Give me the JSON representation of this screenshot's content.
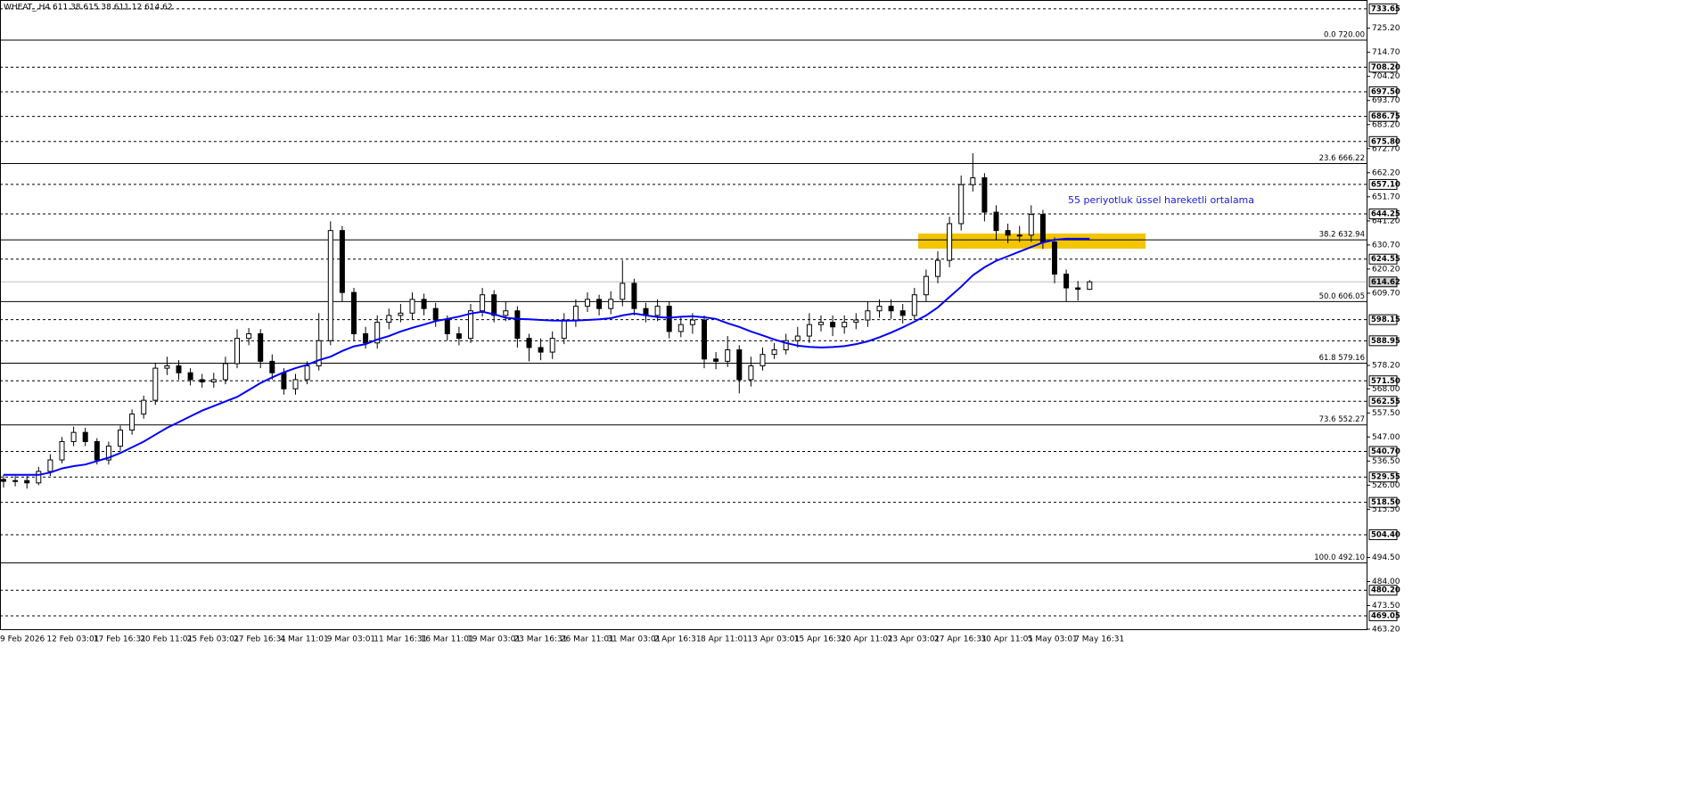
{
  "chart_data": {
    "type": "candlestick",
    "title": "WHEAT_,H4  611.38 615.38 611.12 614.62",
    "annotation": "55 periyotluk üssel hareketli ortalama",
    "categories": [
      "9 Feb 2026",
      null,
      null,
      null,
      "12 Feb 03:01",
      null,
      null,
      null,
      "17 Feb 16:31",
      null,
      null,
      null,
      "20 Feb 11:01",
      null,
      null,
      null,
      "25 Feb 03:01",
      null,
      null,
      null,
      "27 Feb 16:31",
      null,
      null,
      null,
      "4 Mar 11:01",
      null,
      null,
      null,
      "9 Mar 03:01",
      null,
      null,
      null,
      "11 Mar 16:31",
      null,
      null,
      null,
      "16 Mar 11:01",
      null,
      null,
      null,
      "19 Mar 03:01",
      null,
      null,
      null,
      "23 Mar 16:31",
      null,
      null,
      null,
      "26 Mar 11:01",
      null,
      null,
      null,
      "31 Mar 03:01",
      null,
      null,
      null,
      "2 Apr 16:31",
      null,
      null,
      null,
      "8 Apr 11:01",
      null,
      null,
      null,
      "13 Apr 03:01",
      null,
      null,
      null,
      "15 Apr 16:31",
      null,
      null,
      null,
      "20 Apr 11:01",
      null,
      null,
      null,
      "23 Apr 03:01",
      null,
      null,
      null,
      "27 Apr 16:31",
      null,
      null,
      null,
      "30 Apr 11:01",
      null,
      null,
      null,
      "5 May 03:01",
      null,
      null,
      null,
      "7 May 16:31",
      null
    ],
    "open": [
      528.5,
      527.7,
      528,
      527,
      532,
      537,
      545,
      549,
      545,
      537,
      543,
      550,
      557,
      563,
      577,
      578,
      575,
      572,
      571,
      572,
      579,
      590,
      592,
      580,
      575,
      568,
      572,
      578,
      589,
      637,
      610,
      592,
      588,
      597,
      600,
      601,
      607,
      603,
      598,
      592,
      590,
      602,
      609,
      600,
      602,
      590,
      586,
      584,
      590,
      598,
      604,
      607,
      603,
      607,
      614,
      603,
      600,
      604,
      593,
      596,
      598,
      581,
      580,
      585,
      572,
      578,
      583,
      585,
      589,
      591,
      596,
      597,
      595,
      597,
      598,
      602,
      604,
      602,
      600,
      609,
      617,
      624,
      640,
      657,
      660,
      645,
      637,
      635,
      635,
      644,
      632,
      618,
      612,
      611.38
    ],
    "high": [
      530.5,
      530,
      530,
      534,
      539.5,
      547,
      551.5,
      551,
      546.5,
      545,
      552,
      559,
      565,
      579,
      582,
      580.5,
      577,
      574.5,
      575,
      582,
      594,
      594.5,
      594,
      583,
      577,
      574.5,
      580,
      601,
      641,
      639,
      612,
      595,
      600,
      603,
      605,
      610,
      609.5,
      605.5,
      600,
      595,
      605,
      612,
      611,
      606,
      604,
      592,
      590,
      593,
      601,
      607,
      610,
      609,
      610.5,
      624,
      616,
      605.5,
      607,
      606,
      599,
      601,
      600,
      584,
      591,
      587,
      582,
      586,
      588,
      592,
      595,
      601,
      600,
      600,
      600,
      601,
      606,
      607,
      607,
      605,
      612,
      620,
      628,
      643,
      661,
      670.7,
      662,
      648,
      640,
      639,
      648,
      646,
      634,
      620,
      615,
      615.38
    ],
    "low": [
      525,
      525.5,
      524.5,
      526,
      530,
      535.5,
      543,
      543,
      535,
      535,
      541,
      548,
      555,
      561,
      574,
      572,
      569.5,
      568.5,
      568.5,
      570,
      577,
      587,
      577,
      572,
      565.5,
      565.5,
      570,
      576,
      587,
      606,
      589,
      585.5,
      585.5,
      594,
      597,
      598,
      600,
      595,
      589,
      587,
      588,
      599.5,
      597,
      597.5,
      586,
      580,
      580.5,
      581,
      587.5,
      595,
      601.5,
      600,
      600.5,
      604,
      600,
      597,
      597.5,
      590,
      590.5,
      592,
      577,
      576.5,
      577.5,
      566,
      569,
      576,
      581,
      583,
      586,
      588,
      593,
      591,
      592,
      594,
      595,
      599,
      598.5,
      596.5,
      598,
      606,
      614,
      621,
      637,
      654,
      641,
      633,
      631.5,
      632,
      632,
      629,
      614,
      606,
      606.5,
      611.12
    ],
    "close": [
      527.7,
      528,
      527,
      532,
      537,
      545,
      549,
      545,
      537,
      543,
      550,
      557,
      563,
      577,
      578,
      575,
      572,
      571,
      572,
      579,
      590,
      592,
      580,
      575,
      568,
      572,
      578,
      589,
      637,
      610,
      592,
      588,
      597,
      600,
      601,
      607,
      603,
      598,
      592,
      590,
      602,
      609,
      600,
      602,
      590,
      586,
      584,
      590,
      598,
      604,
      607,
      603,
      607,
      614,
      603,
      600,
      604,
      593,
      596,
      598,
      581,
      580,
      585,
      572,
      578,
      583,
      585,
      589,
      591,
      596,
      597,
      595,
      597,
      598,
      602,
      604,
      602,
      600,
      609,
      617,
      624,
      640,
      657,
      660,
      645,
      637,
      635,
      635,
      644,
      632,
      618,
      612,
      611.38,
      614.62
    ],
    "ema": {
      "color": "#0000ff",
      "values": [
        530.5,
        530.5,
        530.5,
        530.5,
        531.5,
        533.3,
        534.3,
        535,
        536.5,
        538,
        540,
        542.5,
        545,
        548,
        551,
        553.5,
        556,
        558.5,
        560.5,
        562.5,
        564.5,
        567.5,
        570.5,
        573,
        575.2,
        577,
        578.5,
        580.5,
        582,
        584.5,
        586.5,
        587.5,
        589.5,
        591,
        593,
        594.6,
        596,
        597.5,
        598.5,
        599.5,
        600.8,
        601.6,
        600.5,
        599,
        598.5,
        598.3,
        598,
        597.8,
        597.7,
        597.8,
        598,
        598.3,
        598.8,
        600,
        600.8,
        600,
        599.3,
        599,
        599.4,
        599.6,
        599.2,
        598.5,
        596.6,
        595,
        593,
        591.3,
        589.5,
        588,
        586.8,
        586.3,
        586,
        586.2,
        586.6,
        587.5,
        588.7,
        590.5,
        592.5,
        594.8,
        597.3,
        600,
        603.5,
        608,
        612.5,
        617.5,
        621,
        623.8,
        625.8,
        627.8,
        629.8,
        631.8,
        633,
        633.4,
        633.4,
        633.4
      ]
    },
    "ylim": [
      463.2,
      737.5
    ],
    "yticks": [
      {
        "value": 725.2,
        "label": "725.20"
      },
      {
        "value": 714.7,
        "label": "714.70"
      },
      {
        "value": 704.2,
        "label": "704.20"
      },
      {
        "value": 693.7,
        "label": "693.70"
      },
      {
        "value": 683.2,
        "label": "683.20"
      },
      {
        "value": 672.7,
        "label": "672.70"
      },
      {
        "value": 662.2,
        "label": "662.20"
      },
      {
        "value": 651.7,
        "label": "651.70"
      },
      {
        "value": 641.2,
        "label": "641.20"
      },
      {
        "value": 630.7,
        "label": "630.70"
      },
      {
        "value": 620.2,
        "label": "620.20"
      },
      {
        "value": 609.7,
        "label": "609.70"
      },
      {
        "value": 578.2,
        "label": "578.20"
      },
      {
        "value": 568,
        "label": "568.00"
      },
      {
        "value": 557.5,
        "label": "557.50"
      },
      {
        "value": 547,
        "label": "547.00"
      },
      {
        "value": 536.5,
        "label": "536.50"
      },
      {
        "value": 526,
        "label": "526.00"
      },
      {
        "value": 515.5,
        "label": "515.50"
      },
      {
        "value": 494.5,
        "label": "494.50"
      },
      {
        "value": 484,
        "label": "484.00"
      },
      {
        "value": 473.5,
        "label": "473.50"
      },
      {
        "value": 463.2,
        "label": "463.20"
      }
    ],
    "levels": [
      733.65,
      {
        "value": 708.2,
        "label": "708.20"
      },
      {
        "value": 697.5,
        "label": "697.50"
      },
      686.75,
      {
        "value": 675.8,
        "label": "675.80"
      },
      {
        "value": 657.1,
        "label": "657.10"
      },
      644.25,
      624.55,
      598.15,
      588.95,
      {
        "value": 571.5,
        "label": "571.50"
      },
      562.55,
      {
        "value": 540.7,
        "label": "540.70"
      },
      529.55,
      {
        "value": 518.5,
        "label": "518.50"
      },
      {
        "value": 504.4,
        "label": "504.40"
      },
      {
        "value": 480.2,
        "label": "480.20"
      },
      469.05
    ],
    "fib_levels": [
      {
        "value": 720,
        "label": "0.0 720.00"
      },
      {
        "value": 666.22,
        "label": "23.6 666.22"
      },
      {
        "value": 632.94,
        "label": "38.2 632.94"
      },
      {
        "value": 606.05,
        "label": "50.0 606.05"
      },
      {
        "value": 579.16,
        "label": "61.8 579.16"
      },
      {
        "value": 552.27,
        "label": "73.6 552.27"
      },
      {
        "value": 492.1,
        "label": "100.0 492.10"
      }
    ],
    "price_line": 614.62
  }
}
